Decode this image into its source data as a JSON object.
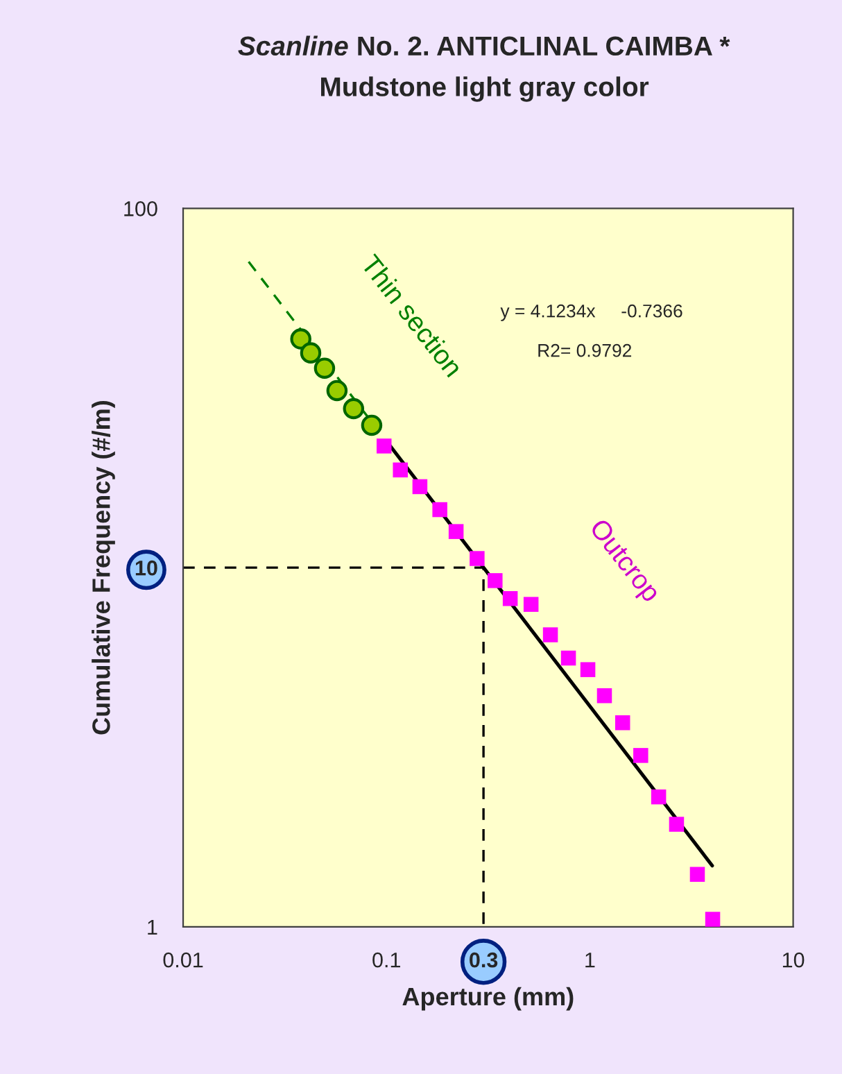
{
  "chart_data": {
    "type": "scatter",
    "title": "Scanline No. 2. ANTICLINAL CAIMBA *\nMudstone light gray color",
    "xlabel": "Aperture (mm)",
    "ylabel": "Cumulative Frequency (#/m)",
    "log": "xy",
    "xlim": [
      0.01,
      10
    ],
    "ylim": [
      1,
      100
    ],
    "xticks": [
      0.01,
      0.1,
      {
        "value": 0.3,
        "label": "0.3"
      },
      1,
      10
    ],
    "yticks": [
      1,
      {
        "value": 10,
        "label": "10"
      },
      100
    ],
    "grid": false,
    "legend": false,
    "annotations": [
      "y = 4.1234x     -0.7366",
      "R2= 0.9792"
    ],
    "series": [
      {
        "name": "Thin section",
        "marker": "circle",
        "color": "#99cc00",
        "x": [
          0.0379,
          0.0424,
          0.0496,
          0.0571,
          0.0689,
          0.0846
        ],
        "values": [
          43.3,
          39.6,
          35.9,
          31.1,
          27.7,
          24.9
        ]
      },
      {
        "name": "Outcrop",
        "marker": "square",
        "color": "#ff00ff",
        "x": [
          0.0973,
          0.117,
          0.146,
          0.183,
          0.22,
          0.279,
          0.342,
          0.406,
          0.514,
          0.64,
          0.785,
          0.978,
          1.18,
          1.45,
          1.78,
          2.18,
          2.67,
          3.38,
          4.02
        ],
        "values": [
          21.8,
          18.7,
          16.8,
          14.5,
          12.6,
          10.6,
          9.2,
          8.2,
          7.9,
          6.5,
          5.6,
          5.2,
          4.4,
          3.7,
          3.0,
          2.3,
          1.93,
          1.4,
          1.05
        ]
      },
      {
        "type": "line",
        "line_style": "dashed",
        "color": "#008000",
        "x": [
          0.021,
          0.09
        ],
        "values": [
          71,
          24.3
        ]
      },
      {
        "type": "line",
        "line_style": "solid",
        "color": "#000000",
        "x": [
          0.1,
          4
        ],
        "values": [
          22.5,
          1.48
        ]
      },
      {
        "type": "line",
        "line_style": "dashed",
        "color": "#000000",
        "x": [
          0.01,
          0.3,
          0.3
        ],
        "values": [
          10,
          10,
          1
        ]
      }
    ]
  }
}
